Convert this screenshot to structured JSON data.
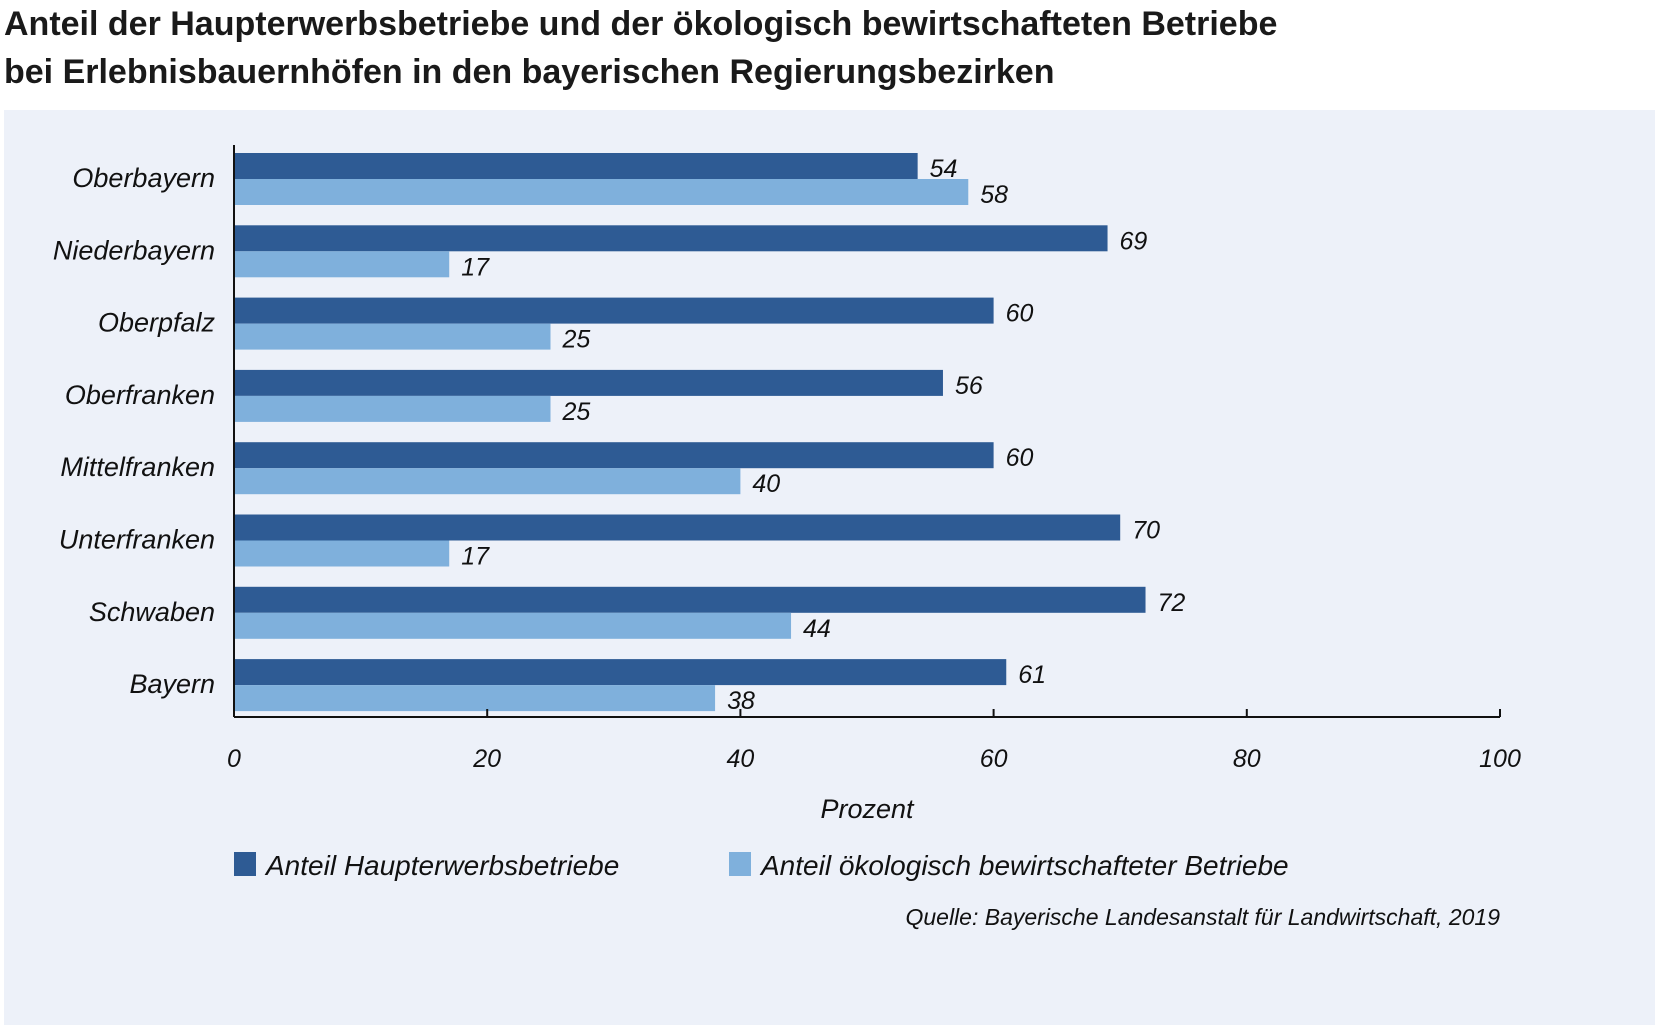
{
  "title_lines": [
    "Anteil der Haupterwerbsbetriebe und der ökologisch bewirtschafteten Betriebe",
    "bei Erlebnisbauernhöfen in den bayerischen Regierungsbezirken"
  ],
  "source": "Quelle: Bayerische Landesanstalt für Landwirtschaft, 2019",
  "colors": {
    "background_panel": "#edf1f9",
    "series_dark": "#2e5b94",
    "series_light": "#7fb0dc",
    "axis": "#111111"
  },
  "chart_data": {
    "type": "bar",
    "orientation": "horizontal",
    "categories": [
      "Oberbayern",
      "Niederbayern",
      "Oberpfalz",
      "Oberfranken",
      "Mittelfranken",
      "Unterfranken",
      "Schwaben",
      "Bayern"
    ],
    "series": [
      {
        "name": "Anteil Haupterwerbsbetriebe",
        "values": [
          54,
          69,
          60,
          56,
          60,
          70,
          72,
          61
        ]
      },
      {
        "name": "Anteil ökologisch bewirtschafteter Betriebe",
        "values": [
          58,
          17,
          25,
          25,
          40,
          17,
          44,
          38
        ]
      }
    ],
    "xlabel": "Prozent",
    "xlim": [
      0,
      100
    ],
    "xticks": [
      0,
      20,
      40,
      60,
      80,
      100
    ],
    "data_labels": true,
    "legend_position": "bottom"
  }
}
